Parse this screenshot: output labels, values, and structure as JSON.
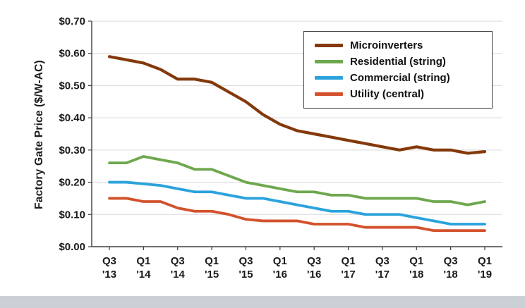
{
  "page": {
    "background": "#ffffff",
    "bottom_strip_color": "#cbd0d6"
  },
  "chart_data": {
    "type": "line",
    "title": "",
    "ylabel": "Factory Gate Price ($/W-AC)",
    "xlabel": "",
    "ylim": [
      0,
      0.7
    ],
    "ytick_step": 0.1,
    "grid": true,
    "legend_position": "top-right",
    "grid_color": "#d9d9d9",
    "axis_color": "#404040",
    "text_color": "#1a1a1a",
    "ytick_labels": [
      "$0.00",
      "$0.10",
      "$0.20",
      "$0.30",
      "$0.40",
      "$0.50",
      "$0.60",
      "$0.70"
    ],
    "x": [
      "Q3 '13",
      "Q4 '13",
      "Q1 '14",
      "Q2 '14",
      "Q3 '14",
      "Q4 '14",
      "Q1 '15",
      "Q2 '15",
      "Q3 '15",
      "Q4 '15",
      "Q1 '16",
      "Q2 '16",
      "Q3 '16",
      "Q4 '16",
      "Q1 '17",
      "Q2 '17",
      "Q3 '17",
      "Q4 '17",
      "Q1 '18",
      "Q2 '18",
      "Q3 '18",
      "Q4 '18",
      "Q1 '19"
    ],
    "xticks": [
      {
        "i": 0,
        "l1": "Q3",
        "l2": "'13"
      },
      {
        "i": 2,
        "l1": "Q1",
        "l2": "'14"
      },
      {
        "i": 4,
        "l1": "Q3",
        "l2": "'14"
      },
      {
        "i": 6,
        "l1": "Q1",
        "l2": "'15"
      },
      {
        "i": 8,
        "l1": "Q3",
        "l2": "'15"
      },
      {
        "i": 10,
        "l1": "Q1",
        "l2": "'16"
      },
      {
        "i": 12,
        "l1": "Q3",
        "l2": "'16"
      },
      {
        "i": 14,
        "l1": "Q1",
        "l2": "'17"
      },
      {
        "i": 16,
        "l1": "Q3",
        "l2": "'17"
      },
      {
        "i": 18,
        "l1": "Q1",
        "l2": "'18"
      },
      {
        "i": 20,
        "l1": "Q3",
        "l2": "'18"
      },
      {
        "i": 22,
        "l1": "Q1",
        "l2": "'19"
      }
    ],
    "series": [
      {
        "name": "Microinverters",
        "color": "#84390B",
        "width": 4.2,
        "values": [
          0.59,
          0.58,
          0.57,
          0.55,
          0.52,
          0.52,
          0.51,
          0.48,
          0.45,
          0.41,
          0.38,
          0.36,
          0.35,
          0.34,
          0.33,
          0.32,
          0.31,
          0.3,
          0.31,
          0.3,
          0.3,
          0.29,
          0.295
        ]
      },
      {
        "name": "Residential (string)",
        "color": "#6EA84E",
        "width": 3.8,
        "values": [
          0.26,
          0.26,
          0.28,
          0.27,
          0.26,
          0.24,
          0.24,
          0.22,
          0.2,
          0.19,
          0.18,
          0.17,
          0.17,
          0.16,
          0.16,
          0.15,
          0.15,
          0.15,
          0.15,
          0.14,
          0.14,
          0.13,
          0.14
        ]
      },
      {
        "name": "Commercial (string)",
        "color": "#2BA2DC",
        "width": 3.8,
        "values": [
          0.2,
          0.2,
          0.195,
          0.19,
          0.18,
          0.17,
          0.17,
          0.16,
          0.15,
          0.15,
          0.14,
          0.13,
          0.12,
          0.11,
          0.11,
          0.1,
          0.1,
          0.1,
          0.09,
          0.08,
          0.07,
          0.07,
          0.07
        ]
      },
      {
        "name": "Utility (central)",
        "color": "#D3512C",
        "width": 3.8,
        "values": [
          0.15,
          0.15,
          0.14,
          0.14,
          0.12,
          0.11,
          0.11,
          0.1,
          0.085,
          0.08,
          0.08,
          0.08,
          0.07,
          0.07,
          0.07,
          0.06,
          0.06,
          0.06,
          0.06,
          0.05,
          0.05,
          0.05,
          0.05
        ]
      }
    ]
  }
}
